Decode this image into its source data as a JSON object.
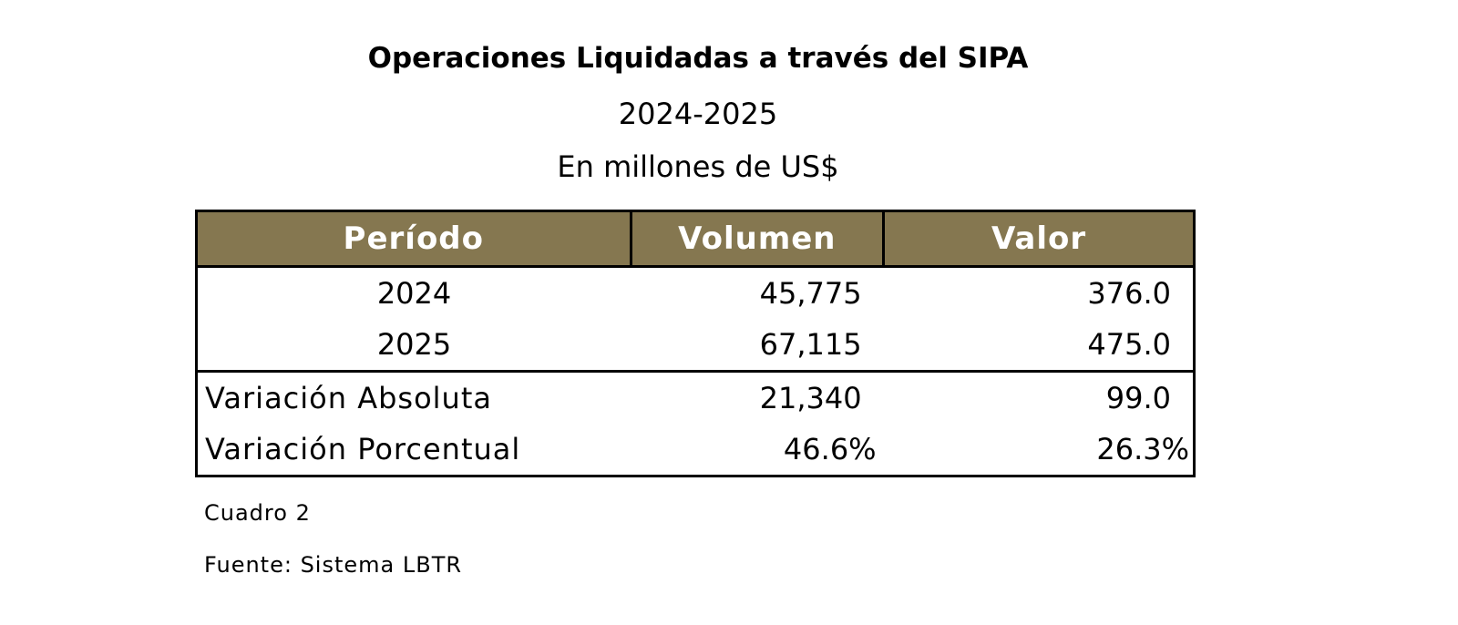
{
  "header": {
    "title": "Operaciones Liquidadas a través del SIPA",
    "period": "2024-2025",
    "unit": "En millones de US$"
  },
  "colors": {
    "header_bg": "#857750",
    "header_text": "#ffffff"
  },
  "table": {
    "columns": [
      "Período",
      "Volumen",
      "Valor"
    ],
    "rows": [
      {
        "label": "2024",
        "volumen": "45,775",
        "valor": "376.0"
      },
      {
        "label": "2025",
        "volumen": "67,115",
        "valor": "475.0"
      },
      {
        "label": "Variación Absoluta",
        "volumen": "21,340",
        "valor": "99.0"
      },
      {
        "label": "Variación Porcentual",
        "volumen": "46.6%",
        "valor": "26.3%"
      }
    ]
  },
  "footer": {
    "caption": "Cuadro 2",
    "source": "Fuente: Sistema LBTR"
  }
}
